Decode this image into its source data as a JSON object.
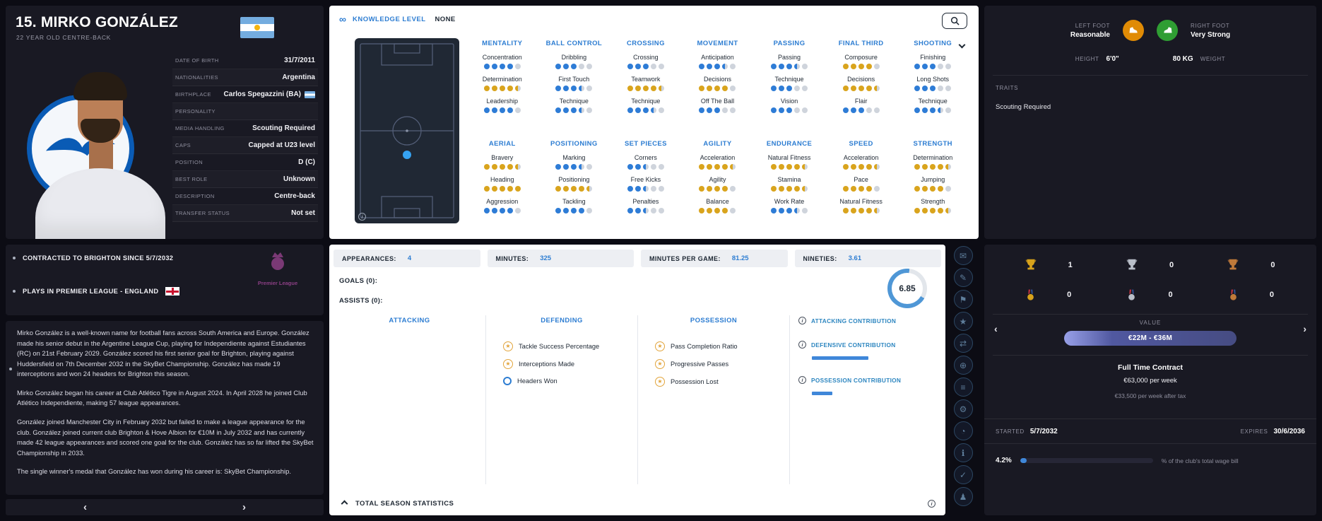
{
  "colors": {
    "accent_blue": "#2d7dd2",
    "dot_blue": "#2e7cd6",
    "dot_gold": "#d9a41d",
    "gold": "#d7a21b",
    "silver": "#b9bfc9",
    "bronze": "#c07a3a",
    "left_foot_orange": "#e08b05",
    "right_foot_green": "#2f9e33"
  },
  "icons": {
    "knowledge": "∞",
    "star": "★",
    "info": "i",
    "chevron_left": "‹",
    "chevron_right": "›",
    "action_glyphs": [
      "✉",
      "✎",
      "⚑",
      "★",
      "⇄",
      "⊕",
      "≡",
      "⚙",
      "◔",
      "ℹ",
      "✓",
      "♟"
    ]
  },
  "player": {
    "title": "15. MIRKO GONZÁLEZ",
    "subtitle": "22 YEAR OLD CENTRE-BACK",
    "info": [
      {
        "label": "DATE OF BIRTH",
        "value": "31/7/2011"
      },
      {
        "label": "NATIONALITIES",
        "value": "Argentina"
      },
      {
        "label": "BIRTHPLACE",
        "value": "Carlos Spegazzini (BA)",
        "flag": "argentina"
      },
      {
        "label": "PERSONALITY",
        "value": ""
      },
      {
        "label": "MEDIA HANDLING",
        "value": "Scouting Required"
      },
      {
        "label": "CAPS",
        "value": "Capped at U23 level"
      },
      {
        "label": "POSITION",
        "value": "D (C)"
      },
      {
        "label": "BEST ROLE",
        "value": "Unknown"
      },
      {
        "label": "DESCRIPTION",
        "value": "Centre-back"
      },
      {
        "label": "TRANSFER STATUS",
        "value": "Not set"
      }
    ],
    "notes": [
      "CONTRACTED TO BRIGHTON SINCE 5/7/2032",
      "PLAYS IN PREMIER LEAGUE - ENGLAND"
    ],
    "league_logo_text": "Premier League",
    "bio": [
      "Mirko González is a well-known name for football fans across South America and Europe. González made his senior debut in the Argentine League Cup, playing for Independiente against Estudiantes (RC) on 21st February 2029. González scored his first senior goal for Brighton, playing against Huddersfield on 7th December 2032 in the SkyBet Championship. González has made 19 interceptions and won 24 headers for Brighton this season.",
      "Mirko González began his career at Club Atlético Tigre in August 2024. In April 2028 he joined Club Atlético Independiente, making 57 league appearances.",
      "González joined Manchester City in February 2032 but failed to make a league appearance for the club. González joined current club Brighton & Hove Albion for €10M in July 2032 and has currently made 42 league appearances and scored one goal for the club. González has so far lifted the SkyBet Championship in 2033.",
      "The single winner's medal that González has won during his career is: SkyBet Championship."
    ]
  },
  "knowledge": {
    "label": "KNOWLEDGE LEVEL",
    "value": "NONE"
  },
  "attributes": {
    "groups": [
      {
        "title": "MENTALITY",
        "attrs": [
          {
            "n": "Concentration",
            "v": 4,
            "c": "blue"
          },
          {
            "n": "Determination",
            "v": 4.5,
            "c": "gold"
          },
          {
            "n": "Leadership",
            "v": 4,
            "c": "blue"
          }
        ]
      },
      {
        "title": "BALL CONTROL",
        "attrs": [
          {
            "n": "Dribbling",
            "v": 3,
            "c": "blue"
          },
          {
            "n": "First Touch",
            "v": 3.5,
            "c": "blue"
          },
          {
            "n": "Technique",
            "v": 3.5,
            "c": "blue"
          }
        ]
      },
      {
        "title": "CROSSING",
        "attrs": [
          {
            "n": "Crossing",
            "v": 3,
            "c": "blue"
          },
          {
            "n": "Teamwork",
            "v": 4.5,
            "c": "gold"
          },
          {
            "n": "Technique",
            "v": 3.5,
            "c": "blue"
          }
        ]
      },
      {
        "title": "MOVEMENT",
        "attrs": [
          {
            "n": "Anticipation",
            "v": 3.5,
            "c": "blue"
          },
          {
            "n": "Decisions",
            "v": 4,
            "c": "gold"
          },
          {
            "n": "Off The Ball",
            "v": 3,
            "c": "blue"
          }
        ]
      },
      {
        "title": "PASSING",
        "attrs": [
          {
            "n": "Passing",
            "v": 3.5,
            "c": "blue"
          },
          {
            "n": "Technique",
            "v": 3,
            "c": "blue"
          },
          {
            "n": "Vision",
            "v": 3,
            "c": "blue"
          }
        ]
      },
      {
        "title": "FINAL THIRD",
        "attrs": [
          {
            "n": "Composure",
            "v": 4,
            "c": "gold"
          },
          {
            "n": "Decisions",
            "v": 4.5,
            "c": "gold"
          },
          {
            "n": "Flair",
            "v": 3,
            "c": "blue"
          }
        ]
      },
      {
        "title": "SHOOTING",
        "attrs": [
          {
            "n": "Finishing",
            "v": 3,
            "c": "blue"
          },
          {
            "n": "Long Shots",
            "v": 3,
            "c": "blue"
          },
          {
            "n": "Technique",
            "v": 3.5,
            "c": "blue"
          }
        ]
      },
      {
        "title": "AERIAL",
        "attrs": [
          {
            "n": "Bravery",
            "v": 4.5,
            "c": "gold"
          },
          {
            "n": "Heading",
            "v": 5,
            "c": "gold"
          },
          {
            "n": "Aggression",
            "v": 4,
            "c": "blue"
          }
        ]
      },
      {
        "title": "POSITIONING",
        "attrs": [
          {
            "n": "Marking",
            "v": 3.5,
            "c": "blue"
          },
          {
            "n": "Positioning",
            "v": 4.5,
            "c": "gold"
          },
          {
            "n": "Tackling",
            "v": 4,
            "c": "blue"
          }
        ]
      },
      {
        "title": "SET PIECES",
        "attrs": [
          {
            "n": "Corners",
            "v": 2.5,
            "c": "blue"
          },
          {
            "n": "Free Kicks",
            "v": 2.5,
            "c": "blue"
          },
          {
            "n": "Penalties",
            "v": 2.5,
            "c": "blue"
          }
        ]
      },
      {
        "title": "AGILITY",
        "attrs": [
          {
            "n": "Acceleration",
            "v": 4.5,
            "c": "gold"
          },
          {
            "n": "Agility",
            "v": 4,
            "c": "gold"
          },
          {
            "n": "Balance",
            "v": 4,
            "c": "gold"
          }
        ]
      },
      {
        "title": "ENDURANCE",
        "attrs": [
          {
            "n": "Natural Fitness",
            "v": 4.5,
            "c": "gold"
          },
          {
            "n": "Stamina",
            "v": 4.5,
            "c": "gold"
          },
          {
            "n": "Work Rate",
            "v": 3.5,
            "c": "blue"
          }
        ]
      },
      {
        "title": "SPEED",
        "attrs": [
          {
            "n": "Acceleration",
            "v": 4.5,
            "c": "gold"
          },
          {
            "n": "Pace",
            "v": 4,
            "c": "gold"
          },
          {
            "n": "Natural Fitness",
            "v": 4.5,
            "c": "gold"
          }
        ]
      },
      {
        "title": "STRENGTH",
        "attrs": [
          {
            "n": "Determination",
            "v": 4.5,
            "c": "gold"
          },
          {
            "n": "Jumping",
            "v": 4,
            "c": "gold"
          },
          {
            "n": "Strength",
            "v": 4.5,
            "c": "gold"
          }
        ]
      }
    ]
  },
  "season": {
    "stats": [
      {
        "label": "APPEARANCES:",
        "value": "4"
      },
      {
        "label": "MINUTES:",
        "value": "325"
      },
      {
        "label": "MINUTES PER GAME:",
        "value": "81.25"
      },
      {
        "label": "NINETIES:",
        "value": "3.61"
      }
    ],
    "goals_label": "GOALS (0):",
    "assists_label": "ASSISTS (0):",
    "rating": "6.85",
    "columns": [
      {
        "title": "ATTACKING",
        "items": []
      },
      {
        "title": "DEFENDING",
        "items": [
          {
            "label": "Tackle Success Percentage",
            "icon": "star-gold"
          },
          {
            "label": "Interceptions Made",
            "icon": "star-gold"
          },
          {
            "label": "Headers Won",
            "icon": "ring-blue"
          }
        ]
      },
      {
        "title": "POSSESSION",
        "items": [
          {
            "label": "Pass Completion Ratio",
            "icon": "star-gold"
          },
          {
            "label": "Progressive Passes",
            "icon": "star-gold"
          },
          {
            "label": "Possession Lost",
            "icon": "star-gold"
          }
        ]
      }
    ],
    "contributions": [
      {
        "label": "ATTACKING CONTRIBUTION",
        "bar_pct": 0
      },
      {
        "label": "DEFENSIVE CONTRIBUTION",
        "bar_pct": 42
      },
      {
        "label": "POSSESSION CONTRIBUTION",
        "bar_pct": 15
      }
    ],
    "footer": "TOTAL SEASON STATISTICS"
  },
  "physical": {
    "left_foot_label": "LEFT FOOT",
    "left_foot_value": "Reasonable",
    "right_foot_label": "RIGHT FOOT",
    "right_foot_value": "Very Strong",
    "height_label": "HEIGHT",
    "height_value": "6'0\"",
    "weight_value": "80 KG",
    "weight_label": "WEIGHT",
    "traits_label": "TRAITS",
    "traits_value": "Scouting Required"
  },
  "honours": {
    "trophies": [
      {
        "type": "gold",
        "count": "1"
      },
      {
        "type": "silver",
        "count": "0"
      },
      {
        "type": "bronze",
        "count": "0"
      }
    ],
    "medals": [
      {
        "type": "gold",
        "count": "0"
      },
      {
        "type": "silver",
        "count": "0"
      },
      {
        "type": "bronze",
        "count": "0"
      }
    ]
  },
  "valuation": {
    "label": "VALUE",
    "range": "€22M - €36M"
  },
  "contract": {
    "type": "Full Time Contract",
    "wage": "€63,000 per week",
    "wage_after_tax": "€33,500 per week after tax",
    "started_label": "STARTED",
    "started": "5/7/2032",
    "expires_label": "EXPIRES",
    "expires": "30/6/2036",
    "wage_pct": "4.2%",
    "wage_pct_note": "% of the club's total wage bill"
  }
}
